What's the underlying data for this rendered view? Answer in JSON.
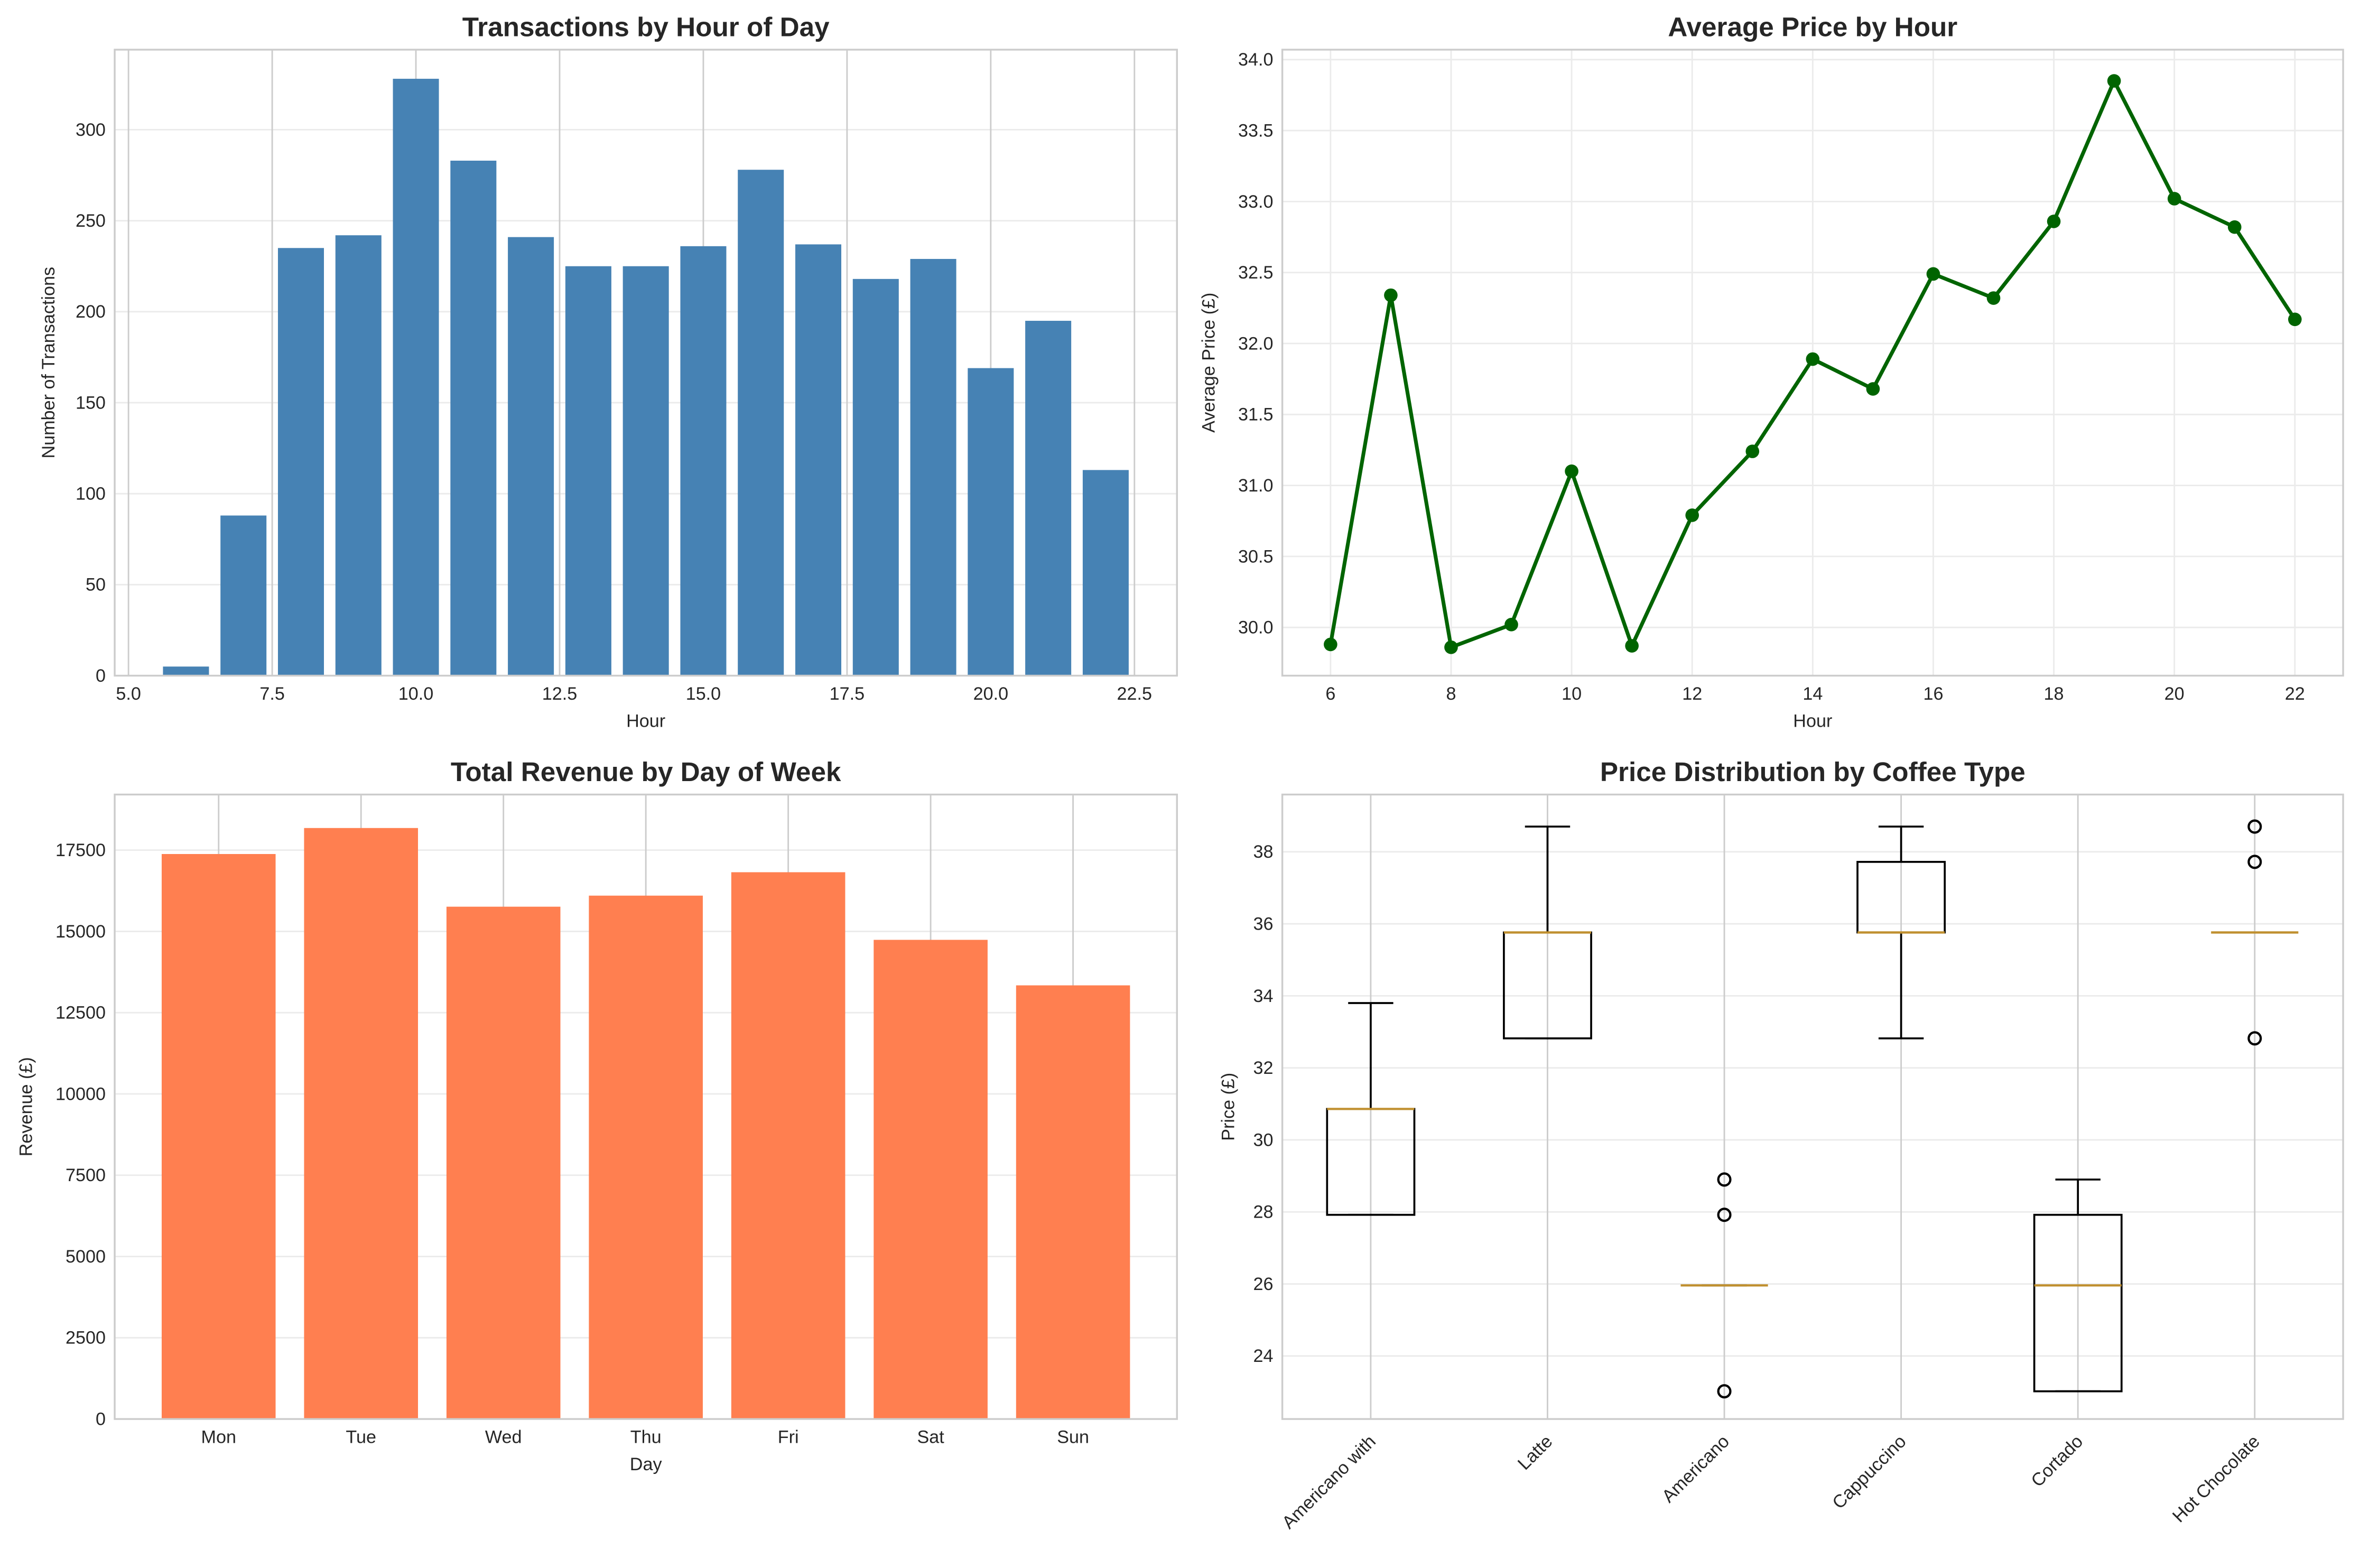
{
  "chart_data": [
    {
      "type": "bar",
      "title": "Transactions by Hour of Day",
      "xlabel": "Hour",
      "ylabel": "Number of Transactions",
      "x": [
        6,
        7,
        8,
        9,
        10,
        11,
        12,
        13,
        14,
        15,
        16,
        17,
        18,
        19,
        20,
        21,
        22
      ],
      "values": [
        5,
        88,
        235,
        242,
        328,
        283,
        241,
        225,
        225,
        236,
        278,
        237,
        218,
        229,
        169,
        195,
        113
      ],
      "xlim": [
        4.76,
        23.24
      ],
      "ylim": [
        0,
        344
      ],
      "xticks": [
        5.0,
        7.5,
        10.0,
        12.5,
        15.0,
        17.5,
        20.0,
        22.5
      ],
      "xtick_labels": [
        "5.0",
        "7.5",
        "10.0",
        "12.5",
        "15.0",
        "17.5",
        "20.0",
        "22.5"
      ],
      "yticks": [
        0,
        50,
        100,
        150,
        200,
        250,
        300
      ],
      "color": "#4682B4",
      "grid": true
    },
    {
      "type": "line",
      "title": "Average Price by Hour",
      "xlabel": "Hour",
      "ylabel": "Average Price (£)",
      "x": [
        6,
        7,
        8,
        9,
        10,
        11,
        12,
        13,
        14,
        15,
        16,
        17,
        18,
        19,
        20,
        21,
        22
      ],
      "values": [
        29.88,
        32.34,
        29.86,
        30.02,
        31.1,
        29.87,
        30.79,
        31.24,
        31.89,
        31.68,
        32.49,
        32.32,
        32.86,
        33.85,
        33.02,
        32.82,
        32.17
      ],
      "xlim": [
        5.2,
        22.8
      ],
      "ylim": [
        29.66,
        34.07
      ],
      "xticks": [
        6,
        8,
        10,
        12,
        14,
        16,
        18,
        20,
        22
      ],
      "xtick_labels": [
        "6",
        "8",
        "10",
        "12",
        "14",
        "16",
        "18",
        "20",
        "22"
      ],
      "yticks": [
        30.0,
        30.5,
        31.0,
        31.5,
        32.0,
        32.5,
        33.0,
        33.5,
        34.0
      ],
      "ytick_labels": [
        "30.0",
        "30.5",
        "31.0",
        "31.5",
        "32.0",
        "32.5",
        "33.0",
        "33.5",
        "34.0"
      ],
      "color": "#006400",
      "marker": "circle",
      "grid": true
    },
    {
      "type": "bar",
      "title": "Total Revenue by Day of Week",
      "xlabel": "Day",
      "ylabel": "Revenue (£)",
      "categories": [
        "Mon",
        "Tue",
        "Wed",
        "Thu",
        "Fri",
        "Sat",
        "Sun"
      ],
      "values": [
        17380,
        18180,
        15760,
        16100,
        16820,
        14740,
        13340
      ],
      "ylim": [
        0,
        19210
      ],
      "yticks": [
        0,
        2500,
        5000,
        7500,
        10000,
        12500,
        15000,
        17500
      ],
      "color": "#FF7F50",
      "grid": true
    },
    {
      "type": "box",
      "title": "Price Distribution by Coffee Type",
      "xlabel": "",
      "ylabel": "Price (£)",
      "categories": [
        "Americano with",
        "Latte",
        "Americano",
        "Cappuccino",
        "Cortado",
        "Hot Chocolate"
      ],
      "boxes": [
        {
          "whislo": 27.92,
          "q1": 27.92,
          "med": 30.86,
          "q3": 30.86,
          "whishi": 33.8,
          "fliers": []
        },
        {
          "whislo": 32.82,
          "q1": 32.82,
          "med": 35.76,
          "q3": 35.76,
          "whishi": 38.7,
          "fliers": []
        },
        {
          "whislo": 25.96,
          "q1": 25.96,
          "med": 25.96,
          "q3": 25.96,
          "whishi": 25.96,
          "fliers": [
            28.9,
            27.92,
            23.02
          ]
        },
        {
          "whislo": 32.82,
          "q1": 35.76,
          "med": 35.76,
          "q3": 37.72,
          "whishi": 38.7,
          "fliers": []
        },
        {
          "whislo": 23.02,
          "q1": 23.02,
          "med": 25.96,
          "q3": 27.92,
          "whishi": 28.9,
          "fliers": []
        },
        {
          "whislo": 35.76,
          "q1": 35.76,
          "med": 35.76,
          "q3": 35.76,
          "whishi": 35.76,
          "fliers": [
            38.7,
            37.72,
            32.82
          ]
        }
      ],
      "ylim": [
        22.25,
        39.59
      ],
      "yticks": [
        24,
        26,
        28,
        30,
        32,
        34,
        36,
        38
      ],
      "median_color": "#C09030",
      "grid": true
    }
  ]
}
